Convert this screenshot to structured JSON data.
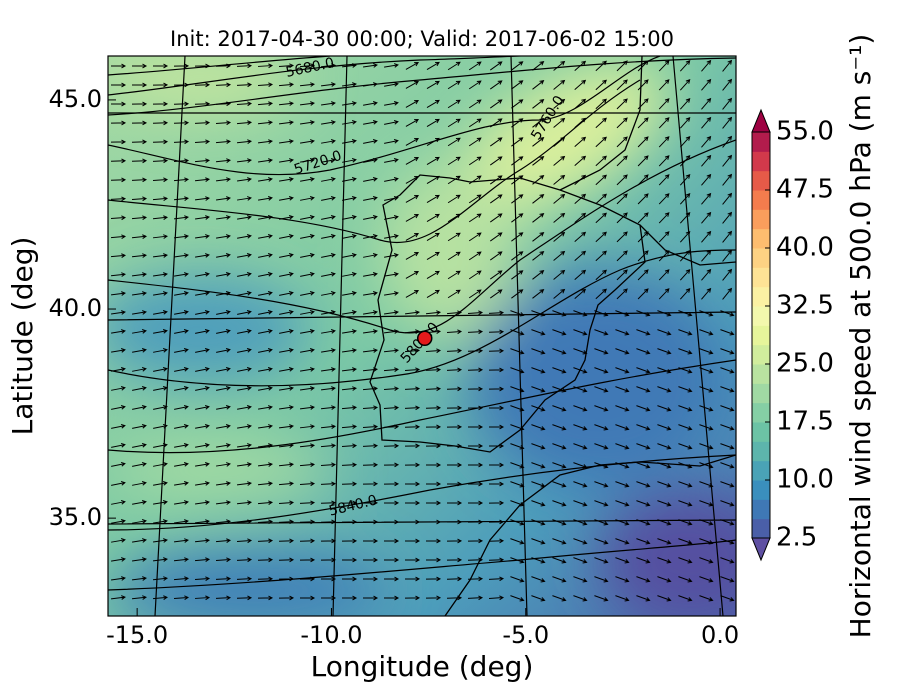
{
  "chart_data": {
    "type": "map",
    "title": "Init: 2017-04-30 00:00; Valid: 2017-06-02 15:00",
    "x_label": "Longitude (deg)",
    "y_label": "Latitude (deg)",
    "xlim": [
      -15.75,
      0.41
    ],
    "ylim": [
      32.66,
      46.05
    ],
    "xticks": [
      {
        "value": -15,
        "label": "-15.0"
      },
      {
        "value": -10,
        "label": "-10.0"
      },
      {
        "value": -5,
        "label": "-5.0"
      },
      {
        "value": 0,
        "label": "0.0"
      }
    ],
    "yticks": [
      {
        "value": 35,
        "label": "35.0"
      },
      {
        "value": 40,
        "label": "40.0"
      },
      {
        "value": 45,
        "label": "45.0"
      }
    ],
    "contour_labels": [
      "5680.0",
      "5720.0",
      "5760.0",
      "5800.0",
      "5840.0"
    ],
    "marker": {
      "lon": -7.6,
      "lat": 39.3,
      "color": "#e41a1c"
    },
    "colorbar": {
      "label": "Horizontal wind speed at 500.0 hPa (m s⁻¹)",
      "lim": [
        2.5,
        55
      ],
      "ticks": [
        {
          "value": 2.5,
          "label": "2.5"
        },
        {
          "value": 10,
          "label": "10.0"
        },
        {
          "value": 17.5,
          "label": "17.5"
        },
        {
          "value": 25,
          "label": "25.0"
        },
        {
          "value": 32.5,
          "label": "32.5"
        },
        {
          "value": 40,
          "label": "40.0"
        },
        {
          "value": 47.5,
          "label": "47.5"
        },
        {
          "value": 55,
          "label": "55.0"
        }
      ],
      "colors": [
        "#4a5fa8",
        "#3f78b5",
        "#3a8fbd",
        "#4aa3b6",
        "#5db5ac",
        "#6cc3a5",
        "#85cfa5",
        "#a0d9a3",
        "#b9e3a0",
        "#d1ed9d",
        "#e6f59b",
        "#f3f8ad",
        "#fbf1a3",
        "#fee395",
        "#fdd283",
        "#fdbd6f",
        "#fa9e5c",
        "#f47c4d",
        "#e65a48",
        "#d2394b",
        "#b21c4c"
      ],
      "extend_low": "#5e4fa2",
      "extend_high": "#9e0142"
    }
  }
}
